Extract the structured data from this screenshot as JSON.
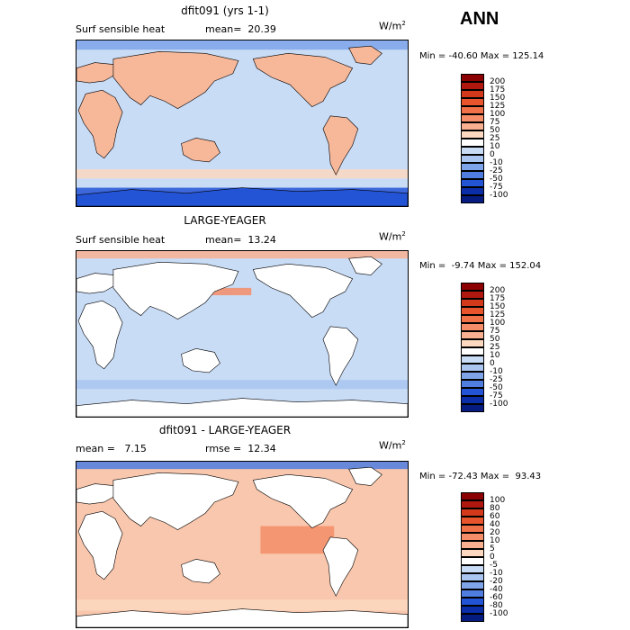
{
  "season": "ANN",
  "units_base": "W/m",
  "units_exp": "2",
  "panels": [
    {
      "title": "dfit091 (yrs 1-1)",
      "left_label": "Surf sensible heat",
      "mid_label": "mean=  20.39",
      "minmax": "Min = -40.60 Max = 125.14",
      "levels": [
        "200",
        "175",
        "150",
        "125",
        "100",
        "75",
        "50",
        "25",
        "10",
        "0",
        "-10",
        "-25",
        "-50",
        "-75",
        "-100"
      ],
      "colors": [
        "#8b0000",
        "#b0170e",
        "#d33a1c",
        "#e8552c",
        "#f07048",
        "#f58d68",
        "#f9b090",
        "#fcd8c0",
        "#ffffff",
        "#c9dcf6",
        "#a9c5f0",
        "#7ea5ea",
        "#4f7de0",
        "#2454d6",
        "#0b2ea8",
        "#051b80"
      ],
      "ocean": "#c9dcf6",
      "land": "#f7b89a"
    },
    {
      "title": "LARGE-YEAGER",
      "left_label": "Surf sensible heat",
      "mid_label": "mean=  13.24",
      "minmax": "Min =  -9.74 Max = 152.04",
      "levels": [
        "200",
        "175",
        "150",
        "125",
        "100",
        "75",
        "50",
        "25",
        "10",
        "0",
        "-10",
        "-25",
        "-50",
        "-75",
        "-100"
      ],
      "colors": [
        "#8b0000",
        "#b0170e",
        "#d33a1c",
        "#e8552c",
        "#f07048",
        "#f58d68",
        "#f9b090",
        "#fcd8c0",
        "#ffffff",
        "#c9dcf6",
        "#a9c5f0",
        "#7ea5ea",
        "#4f7de0",
        "#2454d6",
        "#0b2ea8",
        "#051b80"
      ],
      "ocean": "#c9dcf6",
      "land": "#ffffff"
    },
    {
      "title": "dfit091 - LARGE-YEAGER",
      "left_label": "mean =   7.15",
      "mid_label": "rmse =  12.34",
      "minmax": "Min = -72.43 Max =  93.43",
      "levels": [
        "100",
        "80",
        "60",
        "40",
        "20",
        "10",
        "5",
        "0",
        "-5",
        "-10",
        "-20",
        "-40",
        "-60",
        "-80",
        "-100"
      ],
      "colors": [
        "#8b0000",
        "#b0170e",
        "#d33a1c",
        "#e8552c",
        "#f07048",
        "#f58d68",
        "#f9b090",
        "#fcd8c0",
        "#ffffff",
        "#c9dcf6",
        "#a9c5f0",
        "#7ea5ea",
        "#4f7de0",
        "#2454d6",
        "#0b2ea8",
        "#051b80"
      ],
      "ocean": "#f9c7ad",
      "land": "#ffffff"
    }
  ],
  "chart_data": {
    "type": "heatmap",
    "title": "ANN",
    "variable": "Surf sensible heat",
    "units": "W/m2",
    "panels": [
      {
        "name": "dfit091 (yrs 1-1)",
        "mean": 20.39,
        "min": -40.6,
        "max": 125.14
      },
      {
        "name": "LARGE-YEAGER",
        "mean": 13.24,
        "min": -9.74,
        "max": 152.04
      },
      {
        "name": "dfit091 - LARGE-YEAGER",
        "mean": 7.15,
        "rmse": 12.34,
        "min": -72.43,
        "max": 93.43
      }
    ],
    "contour_levels_abs": [
      -100,
      -75,
      -50,
      -25,
      -10,
      0,
      10,
      25,
      50,
      75,
      100,
      125,
      150,
      175,
      200
    ],
    "contour_levels_diff": [
      -100,
      -80,
      -60,
      -40,
      -20,
      -10,
      -5,
      0,
      5,
      10,
      20,
      40,
      60,
      80,
      100
    ]
  }
}
